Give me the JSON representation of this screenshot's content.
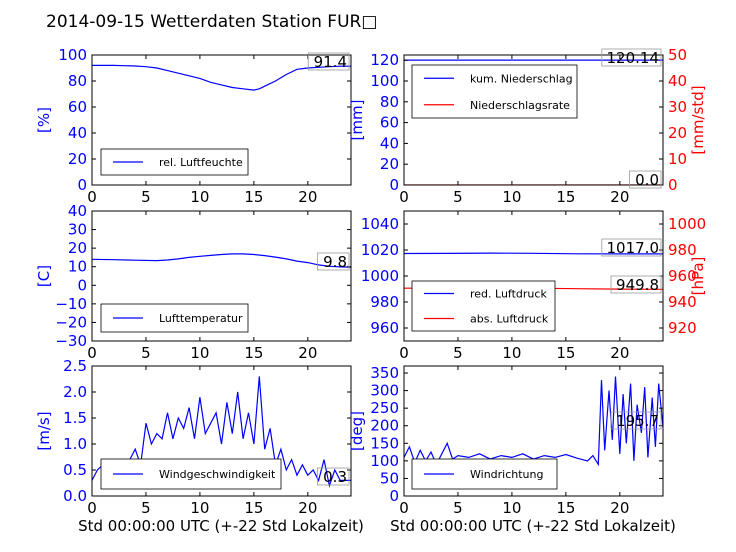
{
  "title": "2014-09-15 Wetterdaten Station FUR□",
  "xlabel": "Std 00:00:00 UTC (+-22 Std Lokalzeit)",
  "colors": {
    "primary": "#0000ff",
    "secondary": "#ff0000"
  },
  "chart_data": [
    {
      "type": "line",
      "xlim": [
        0,
        24
      ],
      "xticks": [
        0,
        5,
        10,
        15,
        20
      ],
      "ylabel": "[%]",
      "ylim": [
        0,
        100
      ],
      "yticks": [
        0,
        20,
        40,
        60,
        80,
        100
      ],
      "legend": "lower-left",
      "annotation": "91.4",
      "series": [
        {
          "name": "rel. Luftfeuchte",
          "color": "#0000ff",
          "x": [
            0,
            2,
            4,
            5,
            6,
            7,
            8,
            9,
            10,
            11,
            12,
            13,
            14,
            15,
            15.5,
            16,
            17,
            18,
            19,
            20,
            21,
            22,
            23,
            24
          ],
          "y": [
            92,
            92,
            91.5,
            91,
            90,
            88,
            86,
            84,
            82,
            79,
            77,
            75,
            74,
            73,
            74,
            76,
            80,
            85,
            89,
            90,
            90.5,
            91,
            91.4,
            91.4
          ]
        }
      ]
    },
    {
      "type": "line",
      "xlim": [
        0,
        24
      ],
      "xticks": [
        0,
        5,
        10,
        15,
        20
      ],
      "ylabel": "[mm]",
      "ylim": [
        0,
        125
      ],
      "yticks": [
        0,
        20,
        40,
        60,
        80,
        100,
        120
      ],
      "ylabel2": "[mm/std]",
      "ylim2": [
        0,
        50
      ],
      "yticks2": [
        0,
        10,
        20,
        30,
        40,
        50
      ],
      "legend": "upper-left",
      "annotations": [
        "120.14",
        "0.0"
      ],
      "series": [
        {
          "name": "kum. Niederschlag",
          "color": "#0000ff",
          "axis": "left",
          "x": [
            0,
            24
          ],
          "y": [
            120.14,
            120.14
          ]
        },
        {
          "name": "Niederschlagsrate",
          "color": "#ff0000",
          "axis": "right",
          "x": [
            0,
            24
          ],
          "y": [
            0,
            0
          ]
        }
      ]
    },
    {
      "type": "line",
      "xlim": [
        0,
        24
      ],
      "xticks": [
        0,
        5,
        10,
        15,
        20
      ],
      "ylabel": "[C]",
      "ylim": [
        -30,
        40
      ],
      "yticks": [
        -30,
        -20,
        -10,
        0,
        10,
        20,
        30,
        40
      ],
      "legend": "lower-left",
      "annotation": "9.8",
      "series": [
        {
          "name": "Lufttemperatur",
          "color": "#0000ff",
          "x": [
            0,
            2,
            4,
            6,
            7,
            8,
            9,
            10,
            11,
            12,
            13,
            14,
            15,
            16,
            17,
            18,
            19,
            20,
            21,
            22,
            23,
            24
          ],
          "y": [
            14,
            13.8,
            13.5,
            13.3,
            13.6,
            14.2,
            15,
            15.6,
            16.1,
            16.6,
            16.9,
            16.9,
            16.6,
            16,
            15.2,
            14.2,
            13,
            12.2,
            11,
            10.2,
            9.9,
            9.8
          ]
        }
      ]
    },
    {
      "type": "line",
      "xlim": [
        0,
        24
      ],
      "xticks": [
        0,
        5,
        10,
        15,
        20
      ],
      "ylim": [
        950,
        1050
      ],
      "yticks": [
        960,
        980,
        1000,
        1020,
        1040
      ],
      "ylabel2": "[hPa]",
      "ylim2": [
        910,
        1010
      ],
      "yticks2": [
        920,
        940,
        960,
        980,
        1000
      ],
      "legend": "lower-left",
      "annotations": [
        "1017.0",
        "949.8"
      ],
      "series": [
        {
          "name": "red. Luftdruck",
          "color": "#0000ff",
          "axis": "left",
          "x": [
            0,
            4,
            8,
            12,
            16,
            20,
            24
          ],
          "y": [
            1017.3,
            1017.4,
            1017.6,
            1017.5,
            1017.1,
            1017.0,
            1017.0
          ]
        },
        {
          "name": "abs. Luftdruck",
          "color": "#ff0000",
          "axis": "right",
          "x": [
            0,
            4,
            8,
            12,
            16,
            20,
            24
          ],
          "y": [
            950.6,
            950.7,
            950.9,
            950.6,
            950.2,
            949.9,
            949.8
          ]
        }
      ]
    },
    {
      "type": "line",
      "xlim": [
        0,
        24
      ],
      "xticks": [
        0,
        5,
        10,
        15,
        20
      ],
      "ylabel": "[m/s]",
      "ylim": [
        0,
        2.5
      ],
      "yticks": [
        0.0,
        0.5,
        1.0,
        1.5,
        2.0,
        2.5
      ],
      "legend": "lower-center",
      "annotation": "0.3",
      "series": [
        {
          "name": "Windgeschwindigkeit",
          "color": "#0000ff",
          "x": [
            0,
            0.5,
            1,
            1.5,
            2,
            2.5,
            3,
            3.5,
            4,
            4.5,
            5,
            5.5,
            6,
            6.5,
            7,
            7.5,
            8,
            8.5,
            9,
            9.5,
            10,
            10.5,
            11,
            11.5,
            12,
            12.5,
            13,
            13.5,
            14,
            14.5,
            15,
            15.5,
            16,
            16.5,
            17,
            17.5,
            18,
            18.5,
            19,
            19.5,
            20,
            20.5,
            21,
            21.5,
            22,
            22.5,
            23,
            23.5,
            24
          ],
          "y": [
            0.3,
            0.5,
            0.6,
            0.5,
            0.7,
            0.6,
            0.6,
            0.7,
            0.9,
            0.6,
            1.4,
            1.0,
            1.2,
            1.1,
            1.6,
            1.1,
            1.5,
            1.3,
            1.7,
            1.1,
            1.9,
            1.2,
            1.4,
            1.6,
            1.0,
            1.8,
            1.2,
            2.0,
            1.1,
            1.6,
            1.0,
            2.3,
            0.9,
            1.3,
            0.6,
            0.9,
            0.5,
            0.7,
            0.4,
            0.6,
            0.4,
            0.5,
            0.3,
            0.7,
            0.2,
            0.5,
            0.3,
            0.3,
            0.3
          ]
        }
      ]
    },
    {
      "type": "line",
      "xlim": [
        0,
        24
      ],
      "xticks": [
        0,
        5,
        10,
        15,
        20
      ],
      "ylabel": "[deg]",
      "ylim": [
        0,
        370
      ],
      "yticks": [
        0,
        50,
        100,
        150,
        200,
        250,
        300,
        350
      ],
      "legend": "lower-left",
      "annotation": "195.7",
      "series": [
        {
          "name": "Windrichtung",
          "color": "#0000ff",
          "x": [
            0,
            0.5,
            1,
            1.5,
            2,
            2.5,
            3,
            3.5,
            4,
            4.5,
            5,
            6,
            7,
            8,
            9,
            10,
            11,
            12,
            13,
            14,
            15,
            16,
            17,
            17.5,
            18,
            18.3,
            18.6,
            19,
            19.3,
            19.6,
            20,
            20.3,
            20.6,
            21,
            21.3,
            21.6,
            22,
            22.3,
            22.6,
            23,
            23.3,
            23.6,
            24
          ],
          "y": [
            110,
            140,
            95,
            130,
            100,
            125,
            90,
            120,
            150,
            105,
            115,
            110,
            120,
            105,
            115,
            110,
            120,
            105,
            115,
            110,
            118,
            108,
            100,
            115,
            90,
            330,
            130,
            300,
            160,
            340,
            120,
            290,
            150,
            320,
            100,
            260,
            180,
            310,
            110,
            280,
            140,
            320,
            195.7
          ]
        }
      ]
    }
  ]
}
